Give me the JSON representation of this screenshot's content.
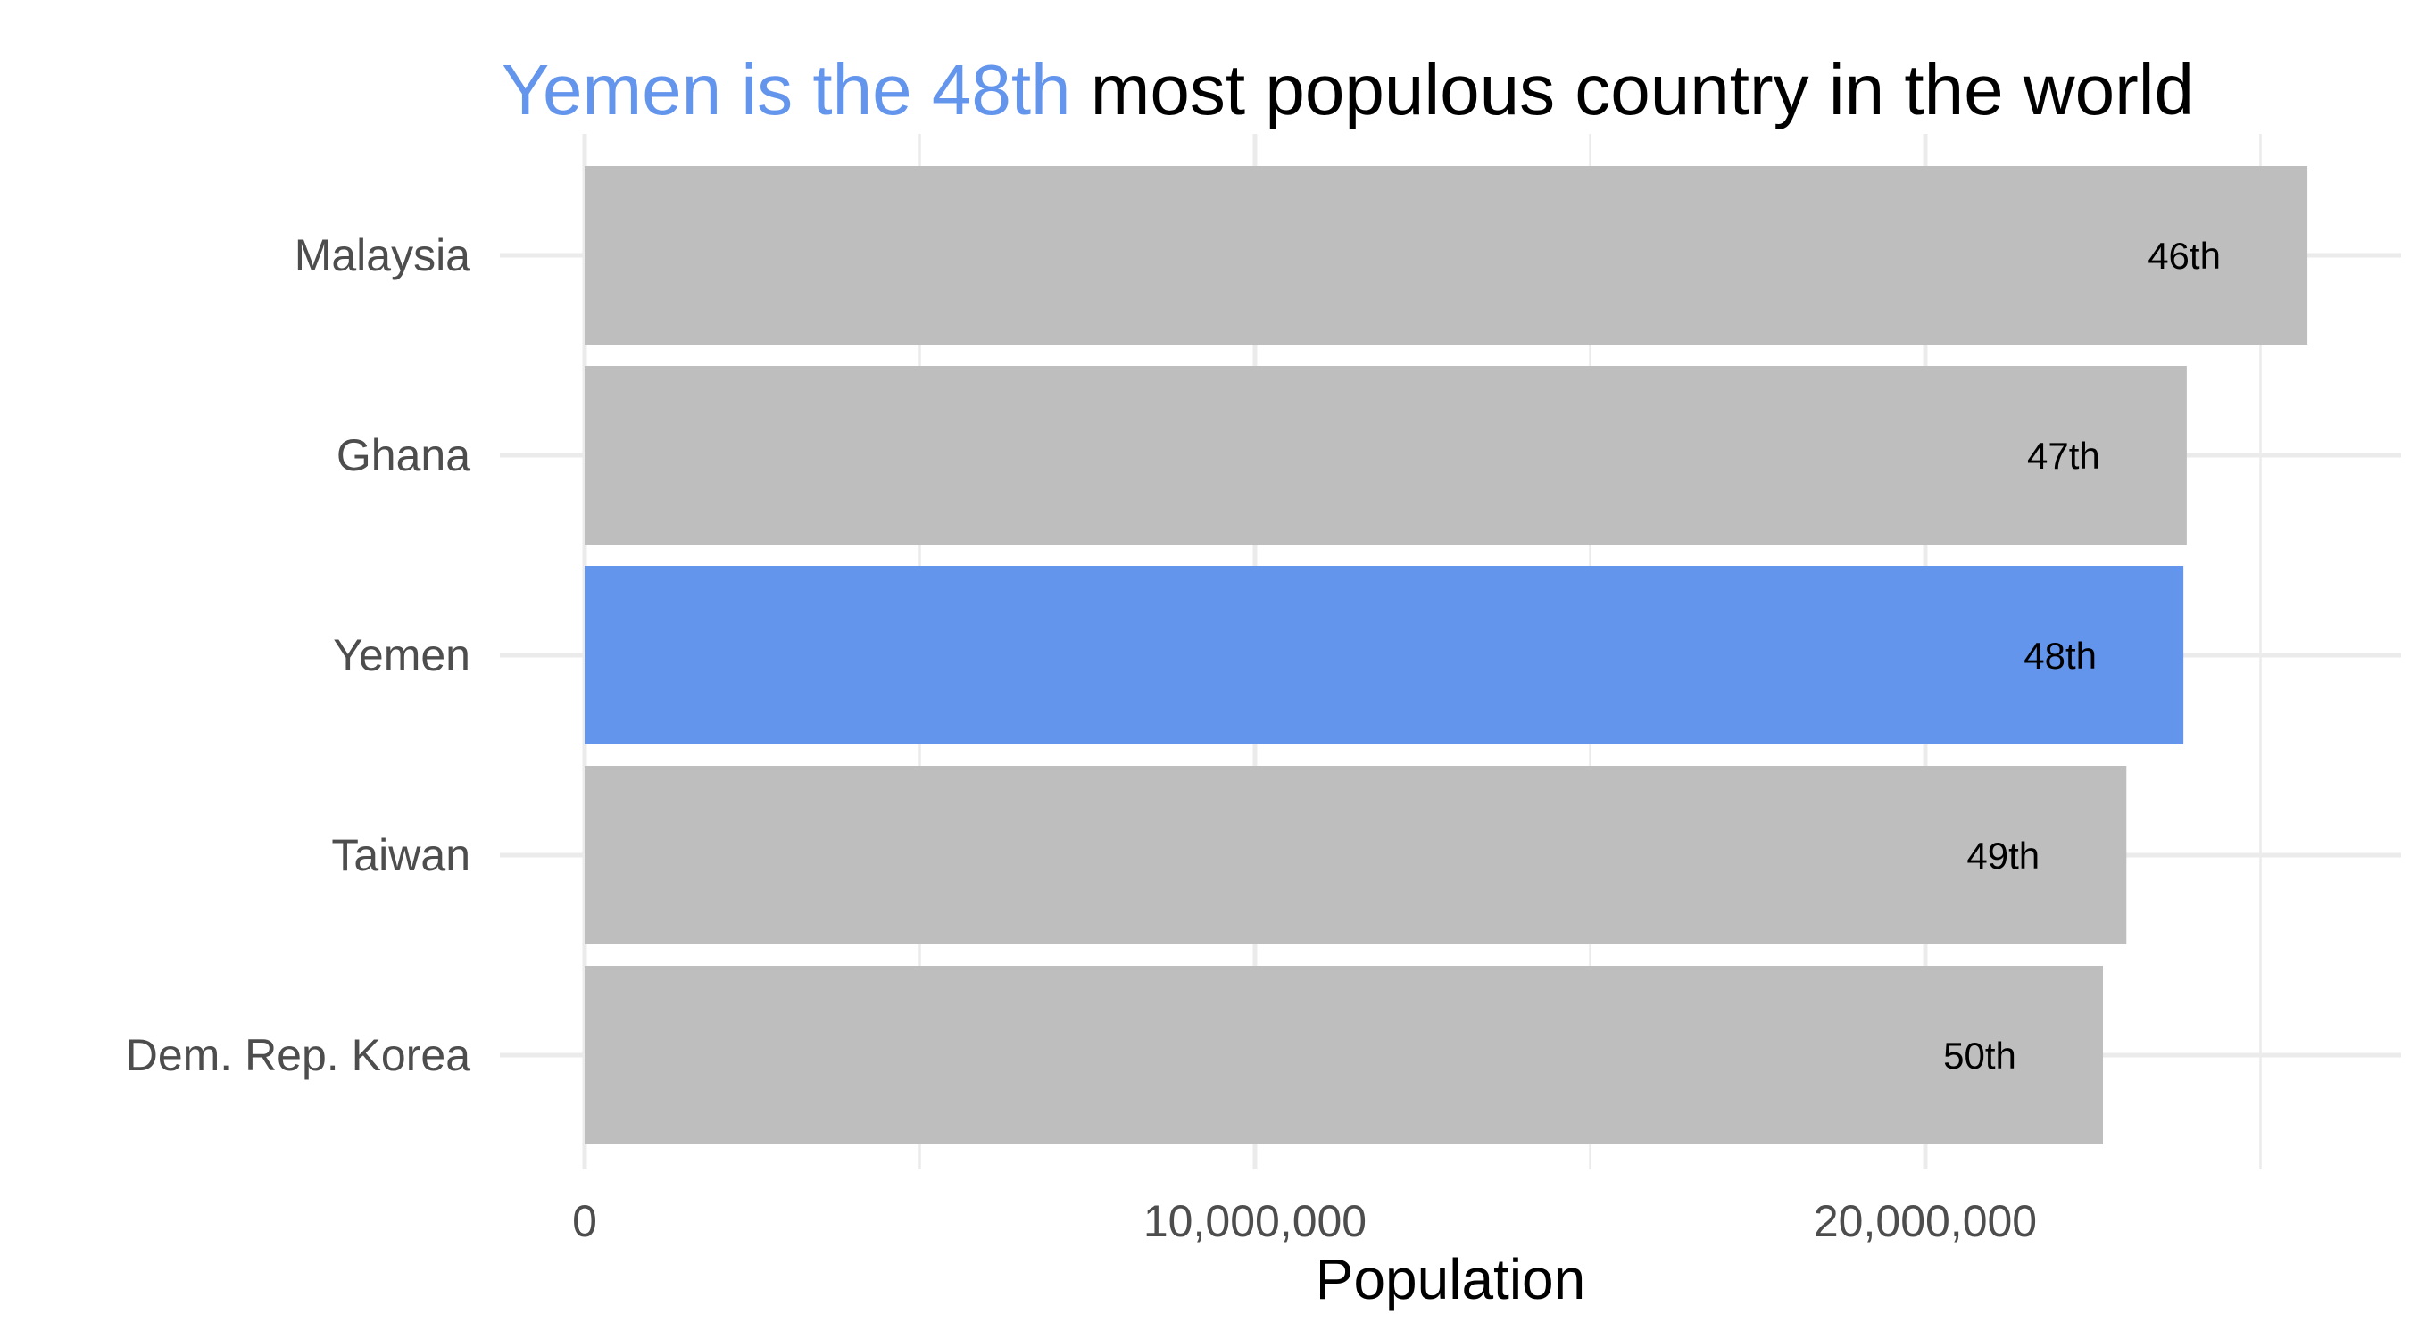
{
  "title": {
    "highlight": "Yemen is the 48th",
    "rest": " most populous country in the world"
  },
  "colors": {
    "highlight": "#6495ED",
    "default_bar": "#BEBEBE",
    "grid": "#EBEBEB"
  },
  "chart_data": {
    "type": "bar",
    "orientation": "horizontal",
    "categories": [
      "Malaysia",
      "Ghana",
      "Yemen",
      "Taiwan",
      "Dem. Rep. Korea"
    ],
    "values": [
      25700000,
      23900000,
      23850000,
      23000000,
      22650000
    ],
    "labels": [
      "46th",
      "47th",
      "48th",
      "49th",
      "50th"
    ],
    "highlight_category": "Yemen",
    "xlabel": "Population",
    "xlim": [
      0,
      26800000
    ],
    "x_ticks": [
      0,
      10000000,
      20000000
    ],
    "x_tick_labels": [
      "0",
      "10,000,000",
      "20,000,000"
    ],
    "x_minor_ticks": [
      5000000,
      15000000,
      25000000
    ],
    "grid": true,
    "legend": "none"
  }
}
